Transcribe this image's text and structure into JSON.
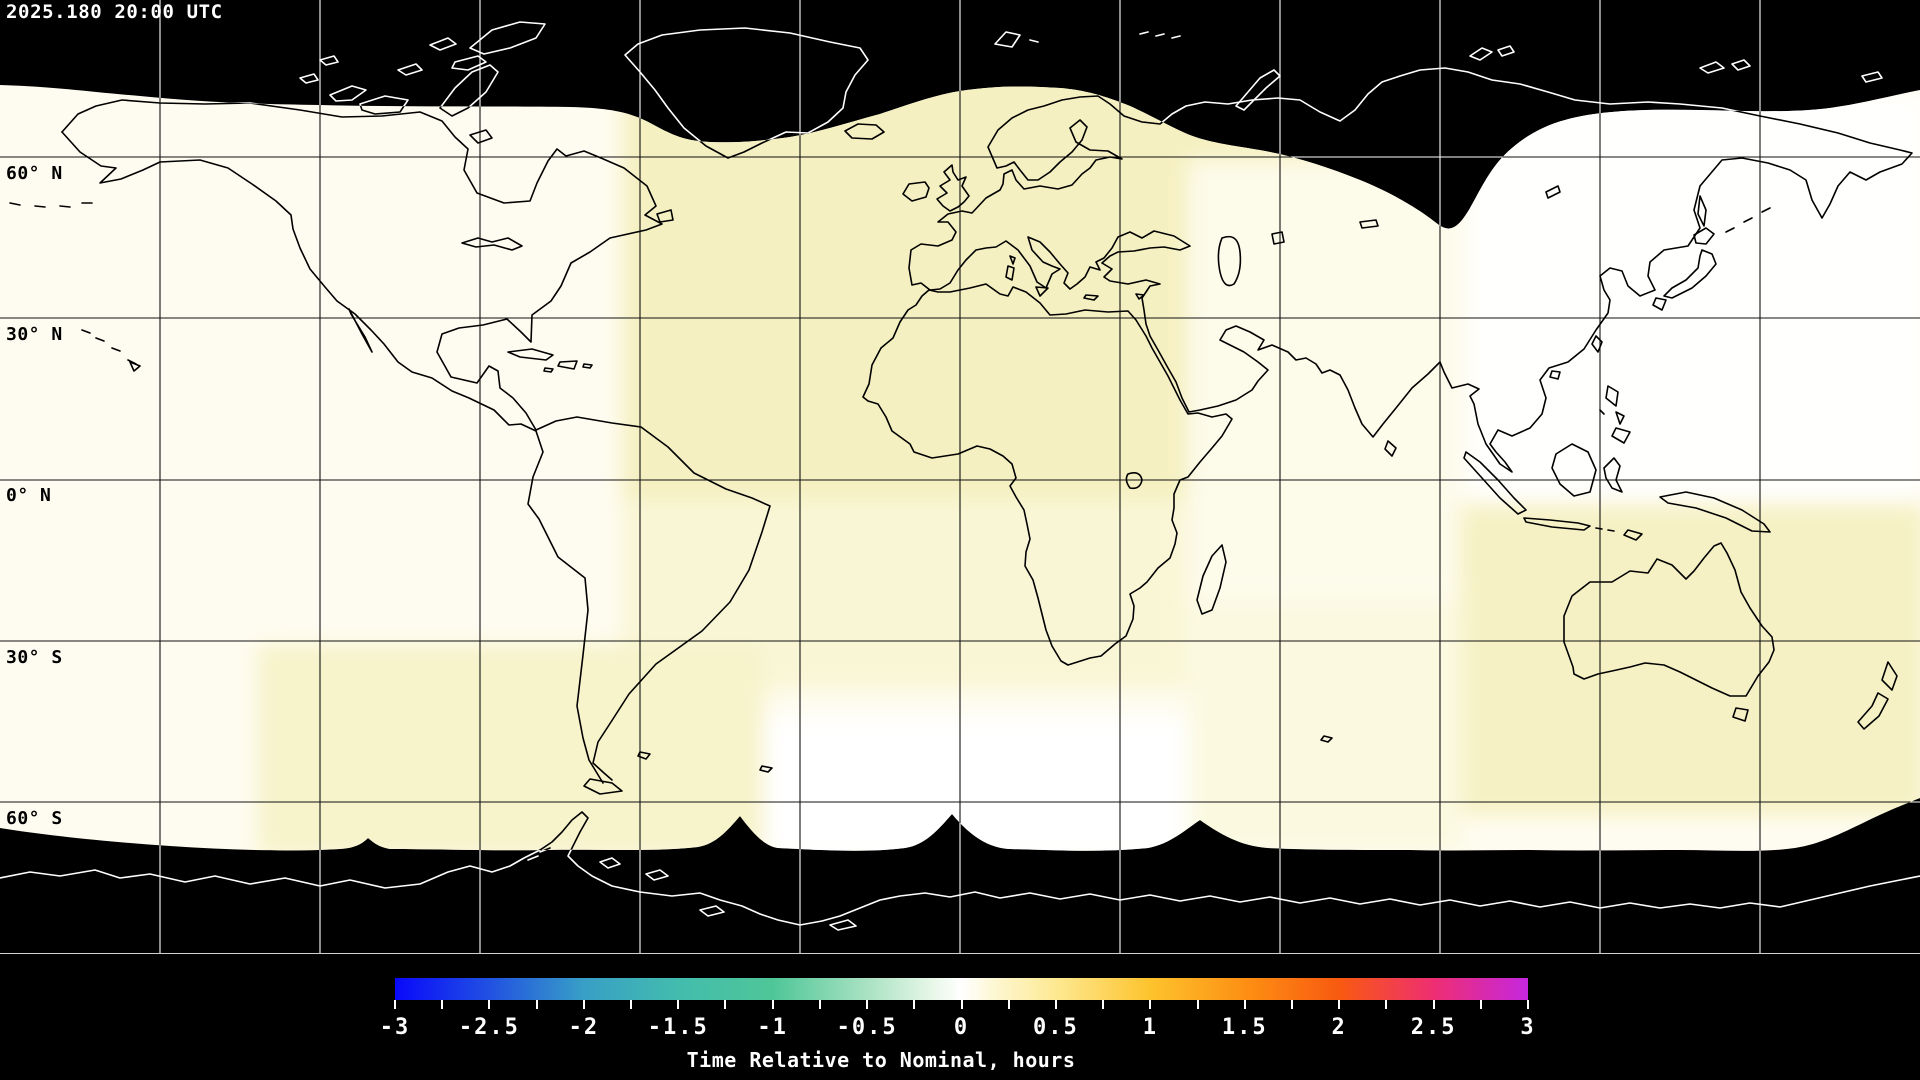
{
  "header": {
    "timestamp": "2025.180 20:00 UTC"
  },
  "map": {
    "latitude_labels": [
      {
        "text": "60° N",
        "lat": 60
      },
      {
        "text": "30° N",
        "lat": 30
      },
      {
        "text": "0° N",
        "lat": 0
      },
      {
        "text": "30° S",
        "lat": -30
      },
      {
        "text": "60° S",
        "lat": -60
      }
    ],
    "grid": {
      "lat_step_deg": 30,
      "lon_step_deg": 30
    },
    "colors": {
      "background": "#000000",
      "map_base": "#fefcf0",
      "tint_yellow": "#f5f0c1",
      "tint_yellow_soft": "#f9f6d6",
      "tint_white": "#ffffff",
      "grid_on_lit": "#111111",
      "grid_on_dark": "#ffffff",
      "coast_on_lit": "#000000",
      "coast_on_dark": "#ffffff"
    }
  },
  "colorbar": {
    "title": "Time Relative to Nominal, hours",
    "min_value": -3,
    "max_value": 3,
    "tick_labels": [
      "-3",
      "-2.5",
      "-2",
      "-1.5",
      "-1",
      "-0.5",
      "0",
      "0.5",
      "1",
      "1.5",
      "2",
      "2.5",
      "3"
    ],
    "minor_tick_step": 0.25,
    "gradient_stops": [
      {
        "value": -3,
        "color": "#0909fb"
      },
      {
        "value": -2.5,
        "color": "#2151e2"
      },
      {
        "value": -2,
        "color": "#389fc6"
      },
      {
        "value": -1.5,
        "color": "#43bcae"
      },
      {
        "value": -1,
        "color": "#4fc697"
      },
      {
        "value": -0.5,
        "color": "#a9e2c3"
      },
      {
        "value": -0.15,
        "color": "#e8f7e8"
      },
      {
        "value": 0,
        "color": "#ffffff"
      },
      {
        "value": 0.2,
        "color": "#fdf6cd"
      },
      {
        "value": 0.5,
        "color": "#fde992"
      },
      {
        "value": 1,
        "color": "#fdc32d"
      },
      {
        "value": 1.5,
        "color": "#fd9013"
      },
      {
        "value": 2,
        "color": "#f85a10"
      },
      {
        "value": 2.5,
        "color": "#ee2e72"
      },
      {
        "value": 3,
        "color": "#c527df"
      }
    ]
  },
  "chart_data": {
    "type": "heatmap",
    "title": "Time Relative to Nominal, hours",
    "timestamp": "2025.180 20:00 UTC",
    "projection": "equirectangular world map, 180W-180E, 90N-90S",
    "gridlines": {
      "lon_step_deg": 30,
      "lat_step_deg": 30,
      "labeled_latitudes": [
        60,
        30,
        0,
        -30,
        -60
      ]
    },
    "colorbar": {
      "min": -3,
      "max": 3,
      "label_step": 0.5,
      "minor_tick_step": 0.25,
      "units": "hours"
    },
    "regions": [
      {
        "area": "polar caps (north of ~72N swath edge and south of ~65S swath edge)",
        "value_hours": null,
        "appearance": "black / no data"
      },
      {
        "area": "Europe, Africa, western Asia (approx 60W-40E, 75N-30S)",
        "value_hours": 0.5,
        "appearance": "pale yellow"
      },
      {
        "area": "Americas and central Pacific (approx 180W-65W)",
        "value_hours": 0.1,
        "appearance": "near-white cream"
      },
      {
        "area": "south-central Atlantic / southern Africa (approx 40W-40E, south of 35S)",
        "value_hours": 0.0,
        "appearance": "white"
      },
      {
        "area": "south-west Pacific / southern South America (approx 135W-40W, south of 40S)",
        "value_hours": 0.4,
        "appearance": "pale yellow"
      },
      {
        "area": "Australia / south-east Indian Ocean (approx 95E-180E, south of 5S)",
        "value_hours": 0.5,
        "appearance": "pale yellow"
      },
      {
        "area": "east Asia / north-west Pacific (approx 45E-180E, north of 0)",
        "value_hours": 0.0,
        "appearance": "white"
      }
    ]
  }
}
